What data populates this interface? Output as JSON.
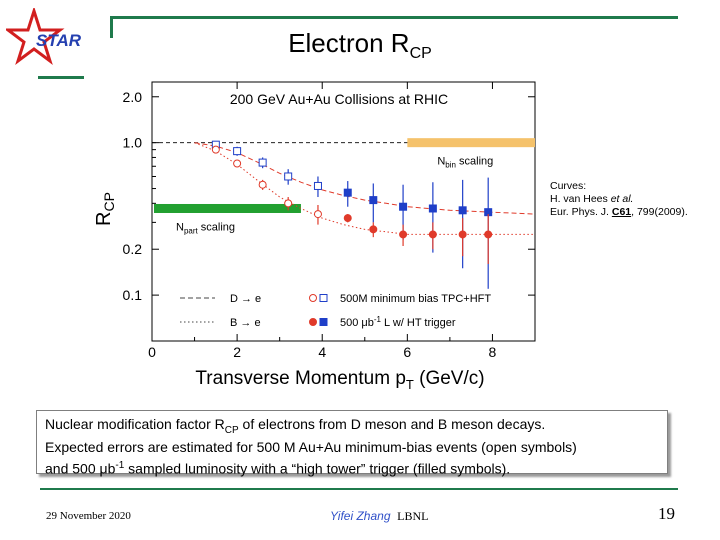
{
  "slide": {
    "title_main": "Electron R",
    "title_sub": "CP",
    "logo_text": "STAR",
    "curves_note": {
      "line1": "Curves:",
      "line2_prefix": "H. van Hees ",
      "line2_italic": "et al.",
      "line3_prefix": "Eur. Phys. J. ",
      "line3_bold": "C61",
      "line3_suffix": ", 799(2009)."
    },
    "caption": {
      "line1_pre": "Nuclear modification factor R",
      "line1_sub": "CP",
      "line1_post": " of electrons from D meson and B meson decays.",
      "line2": "Expected errors are estimated for 500 M Au+Au minimum-bias events (open symbols)",
      "line3_pre": "and 500 μb",
      "line3_sup": "-1",
      "line3_post": " sampled luminosity with a “high tower” trigger (filled symbols)."
    },
    "footer": {
      "date": "29 November 2020",
      "author": "Yifei Zhang",
      "lab": "LBNL",
      "page": "19"
    },
    "colors": {
      "green_bar": "#1f7a4c",
      "red": "#e03a2a",
      "blue": "#1f3fc8",
      "green_band": "#22a030",
      "orange_band": "#f5c26b"
    }
  },
  "chart_data": {
    "type": "scatter",
    "title": "200 GeV Au+Au Collisions at RHIC",
    "xlabel_pre": "Transverse Momentum p",
    "xlabel_sub": "T",
    "xlabel_post": " (GeV/c)",
    "ylabel_main": "R",
    "ylabel_sub": "CP",
    "xlim": [
      0,
      9
    ],
    "ylim": [
      0.05,
      2.5
    ],
    "yscale": "log",
    "x_ticks": [
      0,
      2,
      4,
      6,
      8
    ],
    "y_ticks": [
      {
        "value": 0.1,
        "label": "0.1"
      },
      {
        "value": 0.2,
        "label": "0.2"
      },
      {
        "value": 1.0,
        "label": "1.0"
      },
      {
        "value": 2.0,
        "label": "2.0"
      }
    ],
    "reference_line": 1.0,
    "bands": [
      {
        "label_main": "N",
        "label_sub": "part",
        "label_post": " scaling",
        "x": [
          0.1,
          3.5
        ],
        "y": 0.37,
        "color": "#22a030"
      },
      {
        "label_main": "N",
        "label_sub": "bin",
        "label_post": " scaling",
        "x": [
          6.0,
          9.0
        ],
        "y": 1.0,
        "color": "#f5c26b"
      }
    ],
    "legend": {
      "placement": "bottom",
      "rows": [
        {
          "curve": "D → e",
          "style": "dashed",
          "open_color": "#e03a2a",
          "filled_color": "#1f3fc8",
          "text": "500M minimum bias TPC+HFT"
        },
        {
          "curve": "B → e",
          "style": "dotted",
          "open_color": "#e03a2a",
          "filled_color": "#1f3fc8",
          "text_pre": "500 μb",
          "text_sup": "-1",
          "text_post": " L w/ HT trigger"
        }
      ]
    },
    "series": [
      {
        "marker": "open-square",
        "color": "#1f3fc8",
        "x": [
          1.5,
          2.0,
          2.6,
          3.2,
          3.9
        ],
        "y": [
          0.97,
          0.88,
          0.74,
          0.6,
          0.52
        ],
        "err": [
          0.05,
          0.06,
          0.06,
          0.07,
          0.08
        ]
      },
      {
        "marker": "open-circle",
        "color": "#e03a2a",
        "x": [
          1.5,
          2.0,
          2.6,
          3.2,
          3.9
        ],
        "y": [
          0.9,
          0.73,
          0.53,
          0.4,
          0.34
        ],
        "err": [
          0.04,
          0.04,
          0.04,
          0.04,
          0.05
        ]
      },
      {
        "marker": "filled-square",
        "color": "#1f3fc8",
        "x": [
          4.6,
          5.2,
          5.9,
          6.6,
          7.3,
          7.9
        ],
        "y": [
          0.47,
          0.42,
          0.38,
          0.37,
          0.36,
          0.35
        ],
        "err": [
          0.09,
          0.12,
          0.15,
          0.18,
          0.21,
          0.24
        ]
      },
      {
        "marker": "filled-circle",
        "color": "#e03a2a",
        "x": [
          4.6,
          5.2,
          5.9,
          6.6,
          7.3,
          7.9
        ],
        "y": [
          0.32,
          0.27,
          0.25,
          0.25,
          0.25,
          0.25
        ],
        "err": [
          0.02,
          0.03,
          0.04,
          0.05,
          0.07,
          0.09
        ]
      }
    ],
    "curves": [
      {
        "name": "D → e",
        "style": "dashed",
        "color": "#e03a2a",
        "x": [
          1.0,
          1.5,
          2.0,
          2.5,
          3.0,
          3.5,
          4.0,
          4.5,
          5.0,
          5.5,
          6.0,
          7.0,
          8.0,
          9.0
        ],
        "y": [
          1.0,
          0.95,
          0.86,
          0.74,
          0.63,
          0.55,
          0.49,
          0.45,
          0.42,
          0.4,
          0.38,
          0.36,
          0.35,
          0.34
        ]
      },
      {
        "name": "B → e",
        "style": "dotted",
        "color": "#e03a2a",
        "x": [
          1.0,
          1.5,
          2.0,
          2.5,
          3.0,
          3.5,
          4.0,
          4.5,
          5.0,
          5.5,
          6.0,
          7.0,
          8.0,
          9.0
        ],
        "y": [
          1.0,
          0.88,
          0.72,
          0.56,
          0.44,
          0.37,
          0.32,
          0.29,
          0.27,
          0.26,
          0.25,
          0.25,
          0.25,
          0.25
        ]
      }
    ]
  }
}
